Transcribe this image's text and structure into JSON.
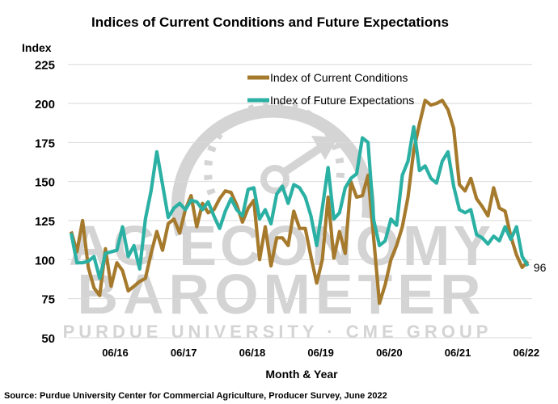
{
  "chart_data": {
    "type": "line",
    "title": "Indices of Current Conditions and Future Expectations",
    "ylabel": "Index",
    "xlabel": "Month & Year",
    "ylim": [
      50,
      225
    ],
    "yticks": [
      50,
      75,
      100,
      125,
      150,
      175,
      200,
      225
    ],
    "xtick_labels": [
      "06/16",
      "06/17",
      "06/18",
      "06/19",
      "06/20",
      "06/21",
      "06/22"
    ],
    "grid": "horizontal",
    "legend_position": "top-center",
    "x": [
      "10/15",
      "11/15",
      "12/15",
      "01/16",
      "02/16",
      "03/16",
      "04/16",
      "05/16",
      "06/16",
      "07/16",
      "08/16",
      "09/16",
      "10/16",
      "11/16",
      "12/16",
      "01/17",
      "02/17",
      "03/17",
      "04/17",
      "05/17",
      "06/17",
      "07/17",
      "08/17",
      "09/17",
      "10/17",
      "11/17",
      "12/17",
      "01/18",
      "02/18",
      "03/18",
      "04/18",
      "05/18",
      "06/18",
      "07/18",
      "08/18",
      "09/18",
      "10/18",
      "11/18",
      "12/18",
      "01/19",
      "02/19",
      "03/19",
      "04/19",
      "05/19",
      "06/19",
      "07/19",
      "08/19",
      "09/19",
      "10/19",
      "11/19",
      "12/19",
      "01/20",
      "02/20",
      "03/20",
      "04/20",
      "05/20",
      "06/20",
      "07/20",
      "08/20",
      "09/20",
      "10/20",
      "11/20",
      "12/20",
      "01/21",
      "02/21",
      "03/21",
      "04/21",
      "05/21",
      "06/21",
      "07/21",
      "08/21",
      "09/21",
      "10/21",
      "11/21",
      "12/21",
      "01/22",
      "02/22",
      "03/22",
      "04/22",
      "05/22",
      "06/22"
    ],
    "series": [
      {
        "name": "Index of Current Conditions",
        "color": "#A67A2C",
        "values": [
          118,
          105,
          125,
          95,
          82,
          77,
          107,
          83,
          98,
          93,
          80,
          83,
          86,
          88,
          104,
          118,
          106,
          123,
          126,
          117,
          132,
          141,
          121,
          136,
          130,
          132,
          139,
          144,
          143,
          135,
          124,
          133,
          138,
          100,
          121,
          96,
          114,
          114,
          109,
          131,
          120,
          120,
          102,
          85,
          100,
          140,
          101,
          118,
          104,
          150,
          140,
          141,
          154,
          113,
          72,
          84,
          100,
          109,
          121,
          140,
          170,
          187,
          202,
          199,
          200,
          202,
          196,
          184,
          148,
          144,
          152,
          139,
          134,
          128,
          146,
          133,
          131,
          115,
          103,
          95,
          99
        ]
      },
      {
        "name": "Index of Future Expectations",
        "color": "#2BB0A4",
        "values": [
          117,
          98,
          98,
          99,
          102,
          88,
          104,
          105,
          106,
          121,
          102,
          109,
          94,
          126,
          144,
          169,
          148,
          127,
          133,
          136,
          132,
          138,
          137,
          132,
          137,
          128,
          120,
          131,
          139,
          132,
          128,
          145,
          146,
          126,
          132,
          123,
          142,
          147,
          136,
          148,
          146,
          140,
          128,
          109,
          133,
          159,
          126,
          130,
          146,
          152,
          155,
          178,
          175,
          125,
          109,
          112,
          126,
          122,
          154,
          163,
          185,
          157,
          160,
          152,
          149,
          163,
          169,
          147,
          132,
          130,
          132,
          116,
          114,
          110,
          115,
          112,
          121,
          113,
          121,
          102,
          96
        ]
      }
    ],
    "data_labels": [
      {
        "series": "Index of Future Expectations",
        "x": "06/22",
        "text": "96"
      }
    ]
  },
  "watermark": {
    "line1": "AG ECONOMY",
    "line2": "BAROMETER",
    "line3": "PURDUE UNIVERSITY · CME GROUP"
  },
  "source": "Source: Purdue University Center for Commercial Agriculture, Producer Survey, June 2022"
}
